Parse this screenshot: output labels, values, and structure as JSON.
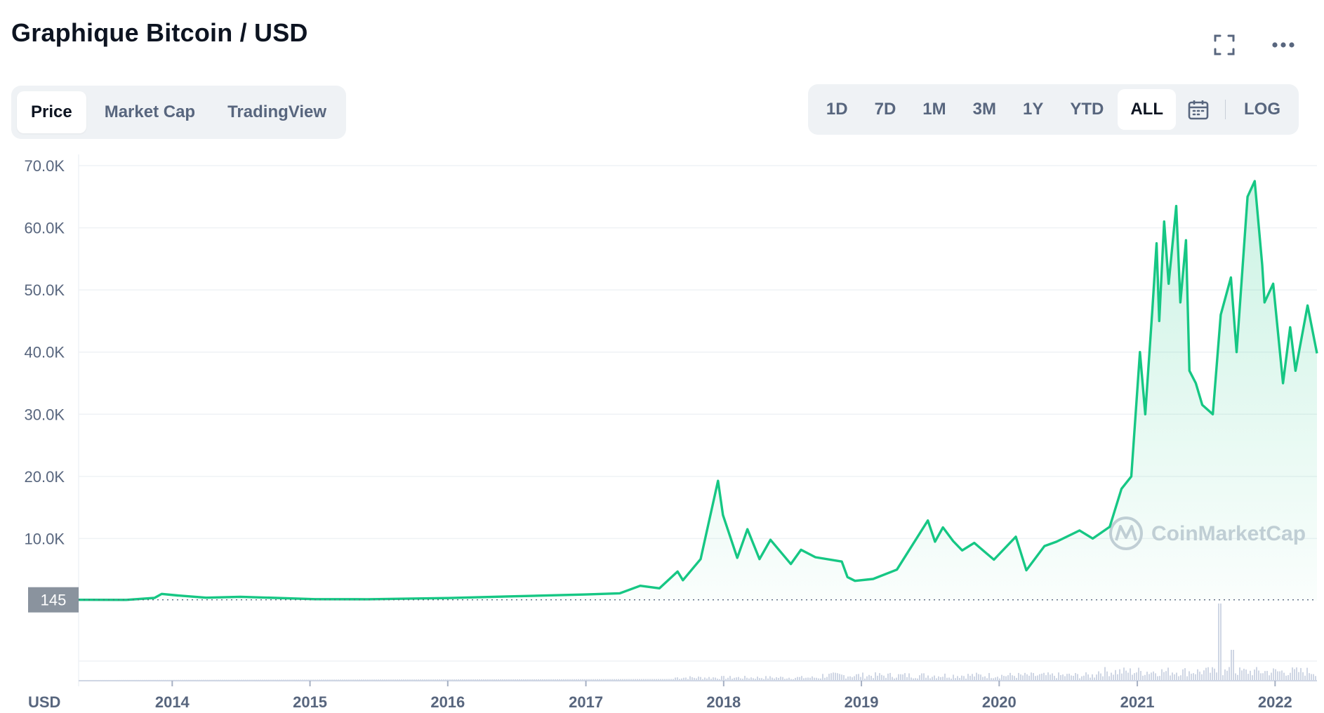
{
  "header": {
    "title": "Graphique Bitcoin / USD",
    "fullscreen_icon": "fullscreen-icon",
    "more_icon": "more-horizontal-icon"
  },
  "view_tabs": [
    {
      "label": "Price",
      "active": true
    },
    {
      "label": "Market Cap",
      "active": false
    },
    {
      "label": "TradingView",
      "active": false
    }
  ],
  "range_tabs": [
    {
      "label": "1D",
      "active": false
    },
    {
      "label": "7D",
      "active": false
    },
    {
      "label": "1M",
      "active": false
    },
    {
      "label": "3M",
      "active": false
    },
    {
      "label": "1Y",
      "active": false
    },
    {
      "label": "YTD",
      "active": false
    },
    {
      "label": "ALL",
      "active": true
    }
  ],
  "calendar_icon": "calendar-icon",
  "log_label": "LOG",
  "colors": {
    "line": "#16c784",
    "grid": "#eff2f5",
    "axis_text": "#58667e",
    "price_tag_bg": "#8a939e",
    "volume": "#cfd6e4",
    "watermark": "#c9cfd9"
  },
  "watermark": "CoinMarketCap",
  "chart_data": {
    "type": "area",
    "currency_label": "USD",
    "y_ticks": [
      "70.0K",
      "60.0K",
      "50.0K",
      "40.0K",
      "30.0K",
      "20.0K",
      "10.0K"
    ],
    "ylim": [
      0,
      70000
    ],
    "x_ticks": [
      "2014",
      "2015",
      "2016",
      "2017",
      "2018",
      "2019",
      "2020",
      "2021",
      "2022"
    ],
    "xlim": [
      "2013-04-28",
      "2022-04-22"
    ],
    "current_price_label": "145",
    "series": [
      {
        "x": [
          "2013-04-28",
          "2013-09-01",
          "2013-11-15",
          "2013-12-04",
          "2014-01-15",
          "2014-04-01",
          "2014-07-01",
          "2015-01-15",
          "2015-06-01",
          "2016-01-01",
          "2016-06-15",
          "2017-01-01",
          "2017-04-01",
          "2017-05-25",
          "2017-07-15",
          "2017-09-01",
          "2017-09-15",
          "2017-11-01",
          "2017-12-17",
          "2017-12-30",
          "2018-02-06",
          "2018-03-05",
          "2018-04-06",
          "2018-05-05",
          "2018-06-28",
          "2018-07-25",
          "2018-09-01",
          "2018-11-10",
          "2018-11-25",
          "2018-12-15",
          "2019-02-01",
          "2019-04-05",
          "2019-06-26",
          "2019-07-15",
          "2019-08-05",
          "2019-09-01",
          "2019-09-25",
          "2019-10-27",
          "2019-12-18",
          "2020-02-14",
          "2020-03-13",
          "2020-04-30",
          "2020-06-01",
          "2020-08-01",
          "2020-09-05",
          "2020-10-20",
          "2020-11-20",
          "2020-12-16",
          "2021-01-08",
          "2021-01-22",
          "2021-02-10",
          "2021-02-21",
          "2021-02-28",
          "2021-03-13",
          "2021-03-25",
          "2021-04-14",
          "2021-04-25",
          "2021-05-10",
          "2021-05-19",
          "2021-06-05",
          "2021-06-22",
          "2021-07-20",
          "2021-08-10",
          "2021-09-06",
          "2021-09-21",
          "2021-10-20",
          "2021-11-08",
          "2021-11-28",
          "2021-12-04",
          "2021-12-27",
          "2022-01-22",
          "2022-02-10",
          "2022-02-24",
          "2022-03-28",
          "2022-04-22"
        ],
        "values": [
          145,
          140,
          450,
          1100,
          850,
          480,
          630,
          250,
          240,
          430,
          700,
          1000,
          1200,
          2400,
          2000,
          4700,
          3300,
          6700,
          19300,
          13800,
          6900,
          11500,
          6700,
          9800,
          5900,
          8200,
          7000,
          6300,
          3800,
          3200,
          3500,
          5000,
          12900,
          9500,
          11800,
          9600,
          8100,
          9300,
          6600,
          10300,
          4900,
          8800,
          9500,
          11300,
          10000,
          11900,
          18000,
          20000,
          40000,
          30000,
          47000,
          57500,
          45000,
          61000,
          51000,
          63500,
          48000,
          58000,
          37000,
          35000,
          31500,
          30000,
          46000,
          52000,
          40000,
          65000,
          67500,
          54000,
          48000,
          51000,
          35000,
          44000,
          37000,
          47500,
          39800
        ]
      }
    ]
  }
}
